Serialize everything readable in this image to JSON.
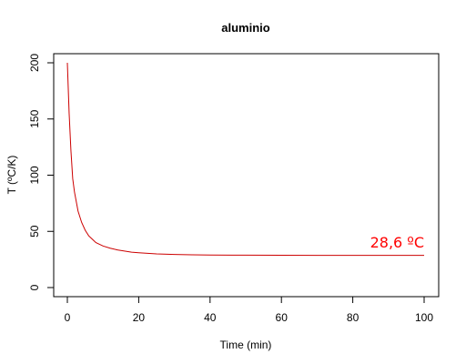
{
  "chart_data": {
    "type": "line",
    "title": "aluminio",
    "xlabel": "Time (min)",
    "ylabel": "T (ºC/K)",
    "xlim": [
      0,
      100
    ],
    "ylim": [
      0,
      200
    ],
    "x_ticks": [
      "0",
      "20",
      "40",
      "60",
      "80",
      "100"
    ],
    "y_ticks": [
      "0",
      "50",
      "100",
      "150",
      "200"
    ],
    "grid": false,
    "series": [
      {
        "color": "#cc0000",
        "x": [
          0,
          0.5,
          1,
          1.5,
          2,
          3,
          4,
          5,
          6,
          7,
          8,
          10,
          12,
          14,
          16,
          18,
          20,
          25,
          30,
          35,
          40,
          50,
          60,
          70,
          80,
          90,
          100
        ],
        "y": [
          200,
          155,
          122,
          97,
          85,
          68,
          58,
          51,
          46,
          43,
          40,
          37,
          35,
          33.5,
          32.5,
          31.5,
          31,
          30,
          29.5,
          29.2,
          29,
          28.8,
          28.7,
          28.6,
          28.6,
          28.6,
          28.6
        ]
      }
    ],
    "annotation": {
      "text": "28,6 ºC",
      "color": "#ff0000"
    }
  }
}
